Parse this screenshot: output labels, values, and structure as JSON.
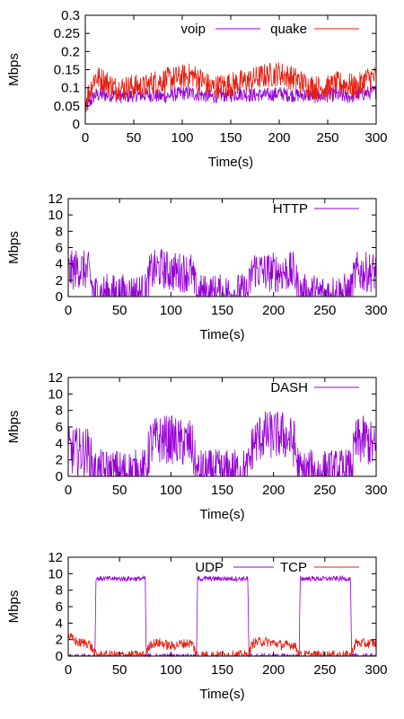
{
  "colors": {
    "purple": "#9400d3",
    "red": "#e51e10",
    "axis": "#000000"
  },
  "chart_data": [
    {
      "type": "line",
      "ylabel": "Mbps",
      "xlabel": "Time(s)",
      "xlim": [
        0,
        300
      ],
      "ylim": [
        0,
        0.3
      ],
      "xticks": [
        0,
        50,
        100,
        150,
        200,
        250,
        300
      ],
      "yticks": [
        0,
        0.05,
        0.1,
        0.15,
        0.2,
        0.25,
        0.3
      ],
      "ytick_labels": [
        "0",
        "0.05",
        "0.1",
        "0.15",
        "0.2",
        "0.25",
        "0.3"
      ],
      "legend": "top-right",
      "series": [
        {
          "name": "voip",
          "color": "#9400d3",
          "x": [
            0,
            10,
            20,
            30,
            40,
            50,
            60,
            70,
            80,
            90,
            100,
            110,
            120,
            130,
            140,
            150,
            160,
            170,
            180,
            190,
            200,
            210,
            220,
            230,
            240,
            250,
            260,
            270,
            280,
            290,
            300
          ],
          "values": [
            0.04,
            0.08,
            0.08,
            0.08,
            0.075,
            0.08,
            0.08,
            0.08,
            0.075,
            0.08,
            0.085,
            0.085,
            0.08,
            0.075,
            0.08,
            0.08,
            0.085,
            0.08,
            0.08,
            0.08,
            0.085,
            0.08,
            0.08,
            0.08,
            0.075,
            0.08,
            0.08,
            0.075,
            0.08,
            0.085,
            0.09
          ],
          "noise": 0.02
        },
        {
          "name": "quake",
          "color": "#e51e10",
          "x": [
            0,
            10,
            20,
            30,
            40,
            50,
            60,
            70,
            80,
            90,
            100,
            110,
            120,
            130,
            140,
            150,
            160,
            170,
            180,
            190,
            200,
            210,
            220,
            230,
            240,
            250,
            260,
            270,
            280,
            290,
            300
          ],
          "values": [
            0.06,
            0.13,
            0.12,
            0.1,
            0.1,
            0.105,
            0.1,
            0.115,
            0.12,
            0.125,
            0.13,
            0.135,
            0.12,
            0.1,
            0.105,
            0.11,
            0.115,
            0.12,
            0.13,
            0.135,
            0.14,
            0.13,
            0.12,
            0.105,
            0.1,
            0.1,
            0.11,
            0.11,
            0.1,
            0.125,
            0.13
          ],
          "noise": 0.035
        }
      ]
    },
    {
      "type": "line",
      "ylabel": "Mbps",
      "xlabel": "Time(s)",
      "xlim": [
        0,
        300
      ],
      "ylim": [
        0,
        12
      ],
      "xticks": [
        0,
        50,
        100,
        150,
        200,
        250,
        300
      ],
      "yticks": [
        0,
        2,
        4,
        6,
        8,
        10,
        12
      ],
      "ytick_labels": [
        "0",
        "2",
        "4",
        "6",
        "8",
        "10",
        "12"
      ],
      "legend": "top-right",
      "series": [
        {
          "name": "HTTP",
          "color": "#9400d3",
          "x": [
            0,
            10,
            20,
            25,
            30,
            50,
            75,
            80,
            90,
            100,
            110,
            120,
            125,
            150,
            175,
            180,
            190,
            200,
            210,
            220,
            225,
            250,
            275,
            280,
            290,
            300
          ],
          "values": [
            3,
            3.5,
            3,
            0.3,
            0.4,
            0.3,
            0.4,
            3,
            3.5,
            3,
            3,
            3,
            0.3,
            0.3,
            0.4,
            3.5,
            3,
            3,
            3,
            3,
            0.3,
            0.3,
            0.4,
            3,
            3,
            3
          ],
          "noise": 2.5
        }
      ]
    },
    {
      "type": "line",
      "ylabel": "Mbps",
      "xlabel": "Time(s)",
      "xlim": [
        0,
        300
      ],
      "ylim": [
        0,
        12
      ],
      "xticks": [
        0,
        50,
        100,
        150,
        200,
        250,
        300
      ],
      "yticks": [
        0,
        2,
        4,
        6,
        8,
        10,
        12
      ],
      "ytick_labels": [
        "0",
        "2",
        "4",
        "6",
        "8",
        "10",
        "12"
      ],
      "legend": "top-right",
      "series": [
        {
          "name": "DASH",
          "color": "#9400d3",
          "x": [
            0,
            10,
            20,
            25,
            30,
            50,
            75,
            80,
            90,
            100,
            110,
            120,
            125,
            150,
            175,
            180,
            190,
            200,
            210,
            220,
            225,
            250,
            275,
            280,
            290,
            300
          ],
          "values": [
            3,
            3,
            3,
            0.3,
            0.3,
            0.3,
            0.4,
            4,
            4.5,
            4.5,
            4,
            4,
            0.3,
            0.3,
            0.5,
            4,
            5,
            5,
            5,
            4,
            0.3,
            0.3,
            0.4,
            4,
            4.5,
            3
          ],
          "noise": 3
        }
      ]
    },
    {
      "type": "line",
      "ylabel": "Mbps",
      "xlabel": "Time(s)",
      "xlim": [
        0,
        300
      ],
      "ylim": [
        0,
        12
      ],
      "xticks": [
        0,
        50,
        100,
        150,
        200,
        250,
        300
      ],
      "yticks": [
        0,
        2,
        4,
        6,
        8,
        10,
        12
      ],
      "ytick_labels": [
        "0",
        "2",
        "4",
        "6",
        "8",
        "10",
        "12"
      ],
      "legend": "top-right",
      "series": [
        {
          "name": "UDP",
          "color": "#9400d3",
          "x": [
            0,
            26,
            27,
            75,
            76,
            125,
            126,
            175,
            176,
            225,
            226,
            275,
            276,
            300
          ],
          "values": [
            0,
            0,
            9.4,
            9.4,
            0,
            0,
            9.4,
            9.4,
            0,
            0,
            9.4,
            9.4,
            0,
            0
          ],
          "noise": 0.3
        },
        {
          "name": "TCP",
          "color": "#e51e10",
          "x": [
            0,
            5,
            10,
            20,
            27,
            30,
            50,
            75,
            80,
            90,
            100,
            110,
            120,
            126,
            130,
            150,
            175,
            180,
            190,
            200,
            210,
            220,
            226,
            230,
            250,
            275,
            280,
            290,
            300
          ],
          "values": [
            2.5,
            2,
            1.6,
            1.6,
            0.1,
            0.1,
            0.1,
            0.1,
            1.5,
            1.6,
            1.2,
            1.5,
            1.6,
            0.1,
            0.1,
            0.1,
            0.1,
            1.6,
            1.8,
            1.6,
            1.3,
            1.4,
            0.1,
            0.1,
            0.1,
            0.1,
            1.6,
            1.5,
            1.6
          ],
          "noise": 0.6
        }
      ]
    }
  ]
}
